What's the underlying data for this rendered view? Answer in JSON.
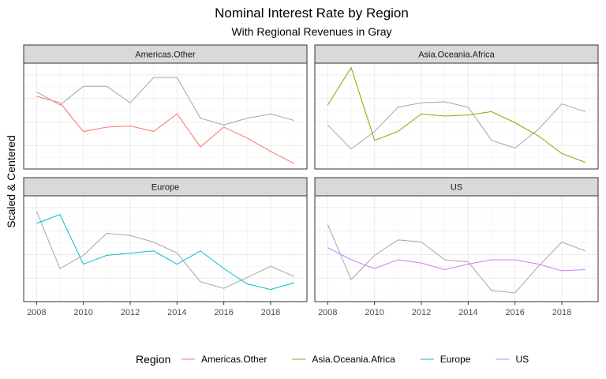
{
  "chart_data": {
    "type": "line",
    "title": "Nominal Interest Rate by Region",
    "subtitle": "With Regional Revenues in Gray",
    "xlabel": "",
    "ylabel": "Scaled & Centered",
    "x": [
      2008,
      2009,
      2010,
      2011,
      2012,
      2013,
      2014,
      2015,
      2016,
      2017,
      2018,
      2019
    ],
    "x_ticks": [
      "2008",
      "2010",
      "2012",
      "2014",
      "2016",
      "2018"
    ],
    "y_ticks_visible": false,
    "ylim": [
      -2.2,
      2.6
    ],
    "grid": true,
    "facets": [
      {
        "name": "Americas.Other",
        "color": "#F8766D",
        "series": [
          {
            "values": [
              1.1,
              0.8,
              -0.5,
              -0.3,
              -0.25,
              -0.5,
              0.3,
              -1.2,
              -0.3,
              -0.8,
              -1.4,
              -1.95
            ]
          },
          {
            "values": [
              1.3,
              0.7,
              1.55,
              1.55,
              0.8,
              1.95,
              1.95,
              0.1,
              -0.2,
              0.1,
              0.3,
              0.0
            ],
            "color": "#a6a6a6"
          }
        ]
      },
      {
        "name": "Asia.Oceania.Africa",
        "color": "#7CAE00",
        "series": [
          {
            "values": [
              0.7,
              2.4,
              -0.9,
              -0.5,
              0.3,
              0.2,
              0.25,
              0.4,
              -0.1,
              -0.7,
              -1.5,
              -1.9
            ]
          },
          {
            "values": [
              -0.2,
              -1.3,
              -0.5,
              0.6,
              0.8,
              0.85,
              0.6,
              -0.9,
              -1.25,
              -0.4,
              0.75,
              0.4
            ],
            "color": "#a6a6a6"
          }
        ]
      },
      {
        "name": "Europe",
        "color": "#00BFC4",
        "series": [
          {
            "values": [
              1.35,
              1.75,
              -0.5,
              -0.1,
              0.0,
              0.1,
              -0.5,
              0.1,
              -0.7,
              -1.4,
              -1.65,
              -1.35
            ]
          },
          {
            "values": [
              1.9,
              -0.7,
              -0.1,
              0.9,
              0.8,
              0.5,
              0.0,
              -1.3,
              -1.6,
              -1.1,
              -0.6,
              -1.05
            ],
            "color": "#a6a6a6"
          }
        ]
      },
      {
        "name": "US",
        "color": "#C77CFF",
        "series": [
          {
            "values": [
              0.25,
              -0.3,
              -0.7,
              -0.3,
              -0.45,
              -0.75,
              -0.5,
              -0.3,
              -0.3,
              -0.5,
              -0.8,
              -0.75
            ]
          },
          {
            "values": [
              1.3,
              -1.2,
              -0.1,
              0.6,
              0.5,
              -0.3,
              -0.4,
              -1.7,
              -1.8,
              -0.6,
              0.5,
              0.1
            ],
            "color": "#a6a6a6"
          }
        ]
      }
    ],
    "legend": {
      "title": "Region",
      "position": "bottom",
      "items": [
        {
          "label": "Americas.Other",
          "color": "#F8766D"
        },
        {
          "label": "Asia.Oceania.Africa",
          "color": "#7CAE00"
        },
        {
          "label": "Europe",
          "color": "#00BFC4"
        },
        {
          "label": "US",
          "color": "#C77CFF"
        }
      ]
    }
  }
}
